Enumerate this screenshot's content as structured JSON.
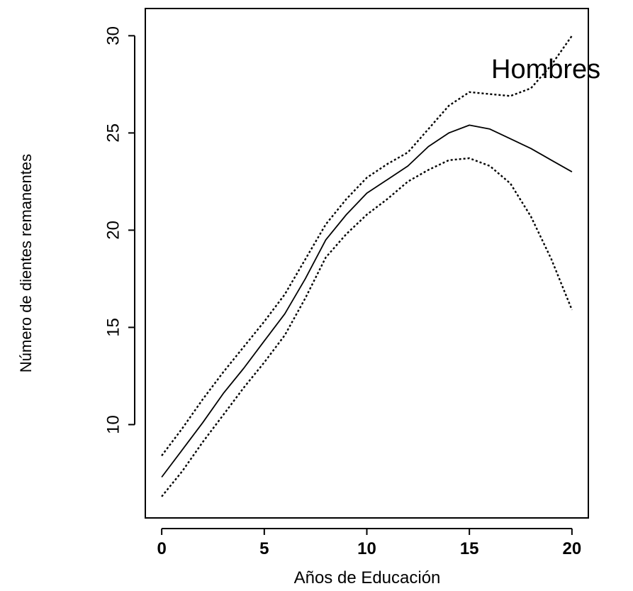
{
  "chart_data": {
    "type": "line",
    "title": "",
    "xlabel": "Años de Educación",
    "ylabel": "Número de dientes remanentes",
    "annotation": "Hombres",
    "xlim": [
      -0.8,
      20.8
    ],
    "ylim": [
      5.2,
      31.4
    ],
    "x_ticks": [
      0,
      5,
      10,
      15,
      20
    ],
    "y_ticks": [
      10,
      15,
      20,
      25,
      30
    ],
    "grid": false,
    "legend": "none",
    "series": [
      {
        "style": "solid",
        "x": [
          0,
          1,
          2,
          3,
          4,
          5,
          6,
          7,
          8,
          9,
          10,
          11,
          12,
          13,
          14,
          15,
          16,
          17,
          18,
          19,
          20
        ],
        "y": [
          7.3,
          8.7,
          10.1,
          11.6,
          12.9,
          14.3,
          15.7,
          17.5,
          19.5,
          20.8,
          21.9,
          22.6,
          23.3,
          24.3,
          25.0,
          25.4,
          25.2,
          24.7,
          24.2,
          23.6,
          23.0
        ]
      },
      {
        "style": "dotted",
        "x": [
          0,
          1,
          2,
          3,
          4,
          5,
          6,
          7,
          8,
          9,
          10,
          11,
          12,
          13,
          14,
          15,
          16,
          17,
          18,
          19,
          20
        ],
        "y": [
          8.4,
          9.8,
          11.3,
          12.7,
          14.0,
          15.3,
          16.7,
          18.5,
          20.3,
          21.6,
          22.7,
          23.4,
          24.0,
          25.2,
          26.4,
          27.1,
          27.0,
          26.9,
          27.3,
          28.5,
          30.0
        ]
      },
      {
        "style": "dotted",
        "x": [
          0,
          1,
          2,
          3,
          4,
          5,
          6,
          7,
          8,
          9,
          10,
          11,
          12,
          13,
          14,
          15,
          16,
          17,
          18,
          19,
          20
        ],
        "y": [
          6.3,
          7.6,
          9.1,
          10.5,
          11.9,
          13.2,
          14.6,
          16.5,
          18.6,
          19.8,
          20.8,
          21.6,
          22.5,
          23.1,
          23.6,
          23.7,
          23.3,
          22.4,
          20.7,
          18.5,
          15.9
        ]
      }
    ]
  }
}
